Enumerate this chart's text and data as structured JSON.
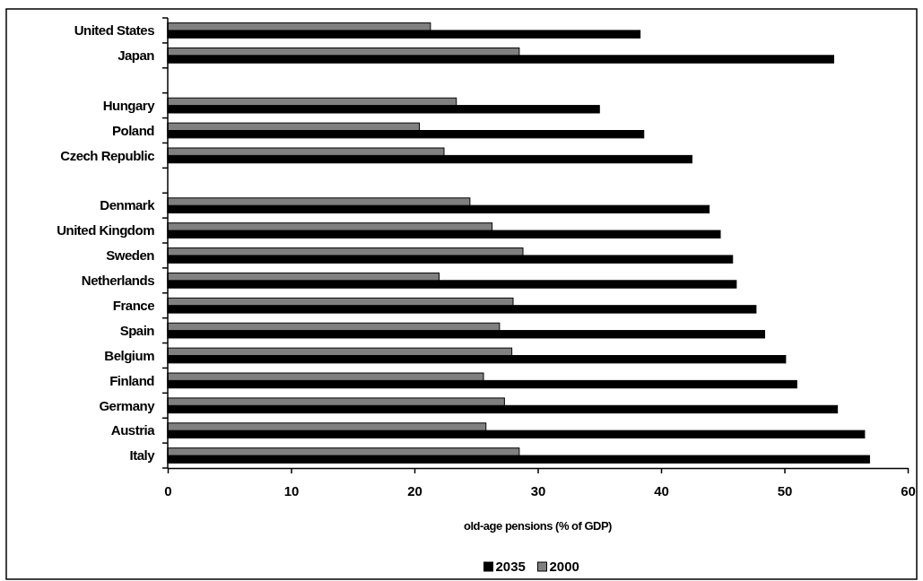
{
  "chart_data": {
    "type": "bar",
    "orientation": "horizontal",
    "xlabel": "old-age pensions (% of GDP)",
    "categories": [
      "United States",
      "Japan",
      null,
      "Hungary",
      "Poland",
      "Czech Republic",
      null,
      "Denmark",
      "United Kingdom",
      "Sweden",
      "Netherlands",
      "France",
      "Spain",
      "Belgium",
      "Finland",
      "Germany",
      "Austria",
      "Italy"
    ],
    "series": [
      {
        "name": "2035",
        "color": "#000000",
        "values": [
          38.3,
          54.0,
          null,
          35.0,
          38.6,
          42.5,
          null,
          43.9,
          44.8,
          45.8,
          46.1,
          47.7,
          48.4,
          50.1,
          51.0,
          54.3,
          56.5,
          56.9
        ]
      },
      {
        "name": "2000",
        "color": "#808080",
        "values": [
          21.3,
          28.5,
          null,
          23.4,
          20.4,
          22.4,
          null,
          24.5,
          26.3,
          28.8,
          22.0,
          28.0,
          26.9,
          27.9,
          25.6,
          27.3,
          25.8,
          28.5
        ]
      }
    ],
    "xlim": [
      0,
      60
    ],
    "xticks": [
      0,
      10,
      20,
      30,
      40,
      50,
      60
    ],
    "grid": false,
    "legend": "bottom"
  }
}
